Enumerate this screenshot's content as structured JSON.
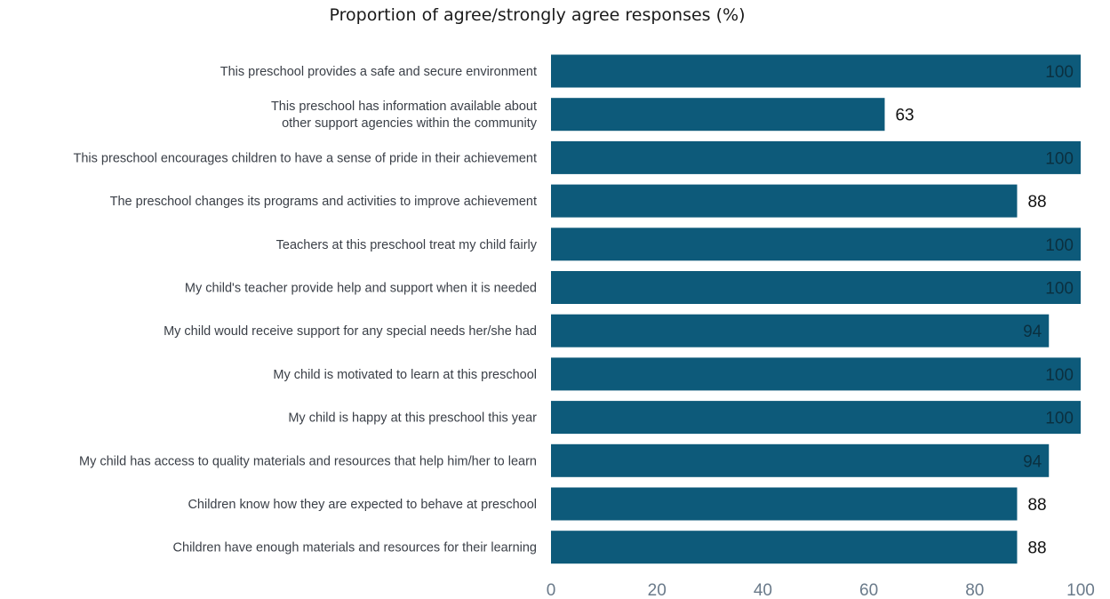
{
  "chart_data": {
    "type": "bar",
    "orientation": "horizontal",
    "title": "Proportion of agree/strongly agree responses (%)",
    "xlabel": "",
    "ylabel": "",
    "xlim": [
      0,
      100
    ],
    "x_ticks": [
      "0",
      "20",
      "40",
      "60",
      "80",
      "100"
    ],
    "grid": false,
    "legend": "none",
    "bar_color": "#0d5a7a",
    "inside_label_color": "#0b3040",
    "outside_label_color": "#111111",
    "categories": [
      [
        "This preschool provides a safe and secure environment"
      ],
      [
        "This preschool has information available about",
        "other support agencies within the community"
      ],
      [
        "This preschool encourages children to have a sense of pride in their achievement"
      ],
      [
        "The preschool changes its programs and activities to improve achievement"
      ],
      [
        "Teachers at this preschool treat my child fairly"
      ],
      [
        "My child's teacher provide help and support when it is needed"
      ],
      [
        "My child would receive support for any special needs her/she had"
      ],
      [
        "My child is motivated to learn at this preschool"
      ],
      [
        "My child is happy at this preschool this year"
      ],
      [
        "My child has access to quality materials and resources that help him/her to learn"
      ],
      [
        "Children know how they are expected to behave at preschool"
      ],
      [
        "Children have enough materials and resources for their learning"
      ]
    ],
    "values": [
      100,
      63,
      100,
      88,
      100,
      100,
      94,
      100,
      100,
      94,
      88,
      88
    ],
    "data_labels": [
      "100",
      "63",
      "100",
      "88",
      "100",
      "100",
      "94",
      "100",
      "100",
      "94",
      "88",
      "88"
    ]
  }
}
